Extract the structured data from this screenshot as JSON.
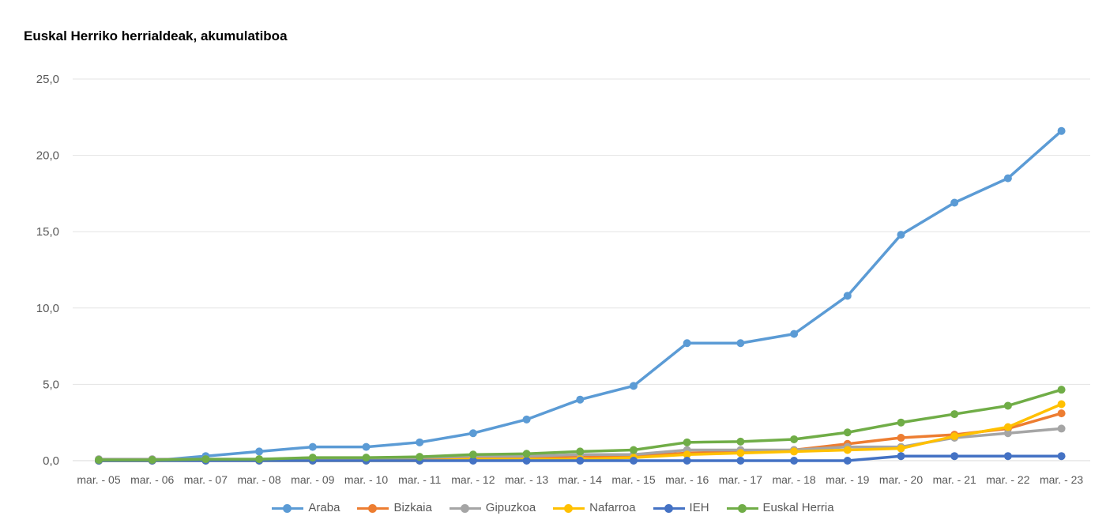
{
  "chart_data": {
    "type": "line",
    "title": "Euskal Herriko herrialdeak, akumulatiboa",
    "categories": [
      "mar. - 05",
      "mar. - 06",
      "mar. - 07",
      "mar. - 08",
      "mar. - 09",
      "mar. - 10",
      "mar. - 11",
      "mar. - 12",
      "mar. - 13",
      "mar. - 14",
      "mar. - 15",
      "mar. - 16",
      "mar. - 17",
      "mar. - 18",
      "mar. - 19",
      "mar. - 20",
      "mar. - 21",
      "mar. - 22",
      "mar. - 23"
    ],
    "x_tick_labels": [
      "mar. - 05",
      "mar. - 06",
      "mar. - 07",
      "mar. - 08",
      "mar. - 09",
      "mar. - 10",
      "mar. - 11",
      "mar. - 12",
      "mar. - 13",
      "mar. - 14",
      "mar. - 15",
      "mar. - 16",
      "mar. - 17",
      "mar. - 18",
      "mar. - 19",
      "mar. - 20",
      "mar. - 21",
      "mar. - 22",
      "mar. - 23"
    ],
    "y_ticks": [
      "0,0",
      "5,0",
      "10,0",
      "15,0",
      "20,0",
      "25,0"
    ],
    "ylim": [
      0,
      25
    ],
    "grid": true,
    "legend_position": "bottom",
    "series": [
      {
        "name": "Araba",
        "color": "#5B9BD5",
        "values": [
          0.0,
          0.0,
          0.3,
          0.6,
          0.9,
          0.9,
          1.2,
          1.8,
          2.7,
          4.0,
          4.9,
          7.7,
          7.7,
          8.3,
          10.8,
          14.8,
          16.9,
          18.5,
          21.6
        ]
      },
      {
        "name": "Bizkaia",
        "color": "#ED7D31",
        "values": [
          0.0,
          0.0,
          0.05,
          0.05,
          0.1,
          0.1,
          0.15,
          0.2,
          0.2,
          0.3,
          0.3,
          0.5,
          0.6,
          0.7,
          1.1,
          1.5,
          1.7,
          2.1,
          3.1
        ]
      },
      {
        "name": "Gipuzkoa",
        "color": "#A5A5A5",
        "values": [
          0.1,
          0.1,
          0.1,
          0.1,
          0.15,
          0.15,
          0.2,
          0.3,
          0.3,
          0.4,
          0.4,
          0.7,
          0.7,
          0.7,
          0.9,
          0.9,
          1.5,
          1.8,
          2.1
        ]
      },
      {
        "name": "Nafarroa",
        "color": "#FFC000",
        "values": [
          0.0,
          0.0,
          0.0,
          0.0,
          0.0,
          0.0,
          0.0,
          0.1,
          0.1,
          0.1,
          0.2,
          0.4,
          0.5,
          0.6,
          0.7,
          0.8,
          1.6,
          2.2,
          3.7
        ]
      },
      {
        "name": "IEH",
        "color": "#4472C4",
        "values": [
          0.0,
          0.0,
          0.0,
          0.0,
          0.0,
          0.0,
          0.0,
          0.0,
          0.0,
          0.0,
          0.0,
          0.0,
          0.0,
          0.0,
          0.0,
          0.3,
          0.3,
          0.3,
          0.3
        ]
      },
      {
        "name": "Euskal Herria",
        "color": "#70AD47",
        "values": [
          0.05,
          0.05,
          0.1,
          0.1,
          0.2,
          0.2,
          0.25,
          0.4,
          0.45,
          0.6,
          0.7,
          1.2,
          1.25,
          1.4,
          1.85,
          2.5,
          3.05,
          3.6,
          4.65
        ]
      }
    ]
  }
}
